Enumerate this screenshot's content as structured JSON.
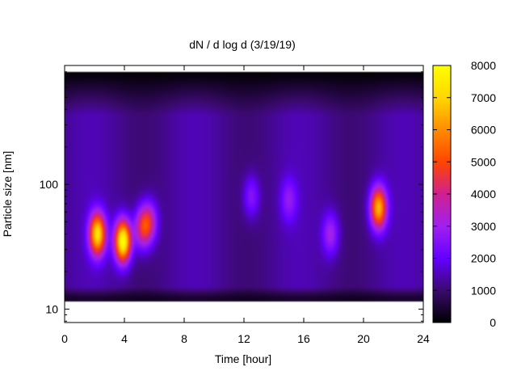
{
  "chart_data": {
    "type": "heatmap",
    "title": "dN / d log d (3/19/19)",
    "xlabel": "Time [hour]",
    "ylabel": "Particle size [nm]",
    "x_range": [
      0,
      24
    ],
    "x_ticks": [
      0,
      4,
      8,
      12,
      16,
      20,
      24
    ],
    "x_tick_labels": [
      "0",
      "4",
      "8",
      "12",
      "16",
      "20",
      "24"
    ],
    "y_scale": "log",
    "y_range": [
      7.8,
      900
    ],
    "data_y_range": [
      11.5,
      800
    ],
    "y_ticks": [
      10,
      100
    ],
    "y_tick_labels": [
      "10",
      "100"
    ],
    "colorbar": {
      "range": [
        0,
        8000
      ],
      "ticks": [
        0,
        1000,
        2000,
        3000,
        4000,
        5000,
        6000,
        7000,
        8000
      ],
      "tick_labels": [
        "0",
        "1000",
        "2000",
        "3000",
        "4000",
        "5000",
        "6000",
        "7000",
        "8000"
      ],
      "palette": [
        "#000000",
        "#3b0a6e",
        "#6400ff",
        "#a020f0",
        "#d02090",
        "#ff4500",
        "#ff8c00",
        "#ffd700",
        "#ffff00"
      ]
    },
    "background_level": 1500,
    "peaks": [
      {
        "time": 2.2,
        "size": 40,
        "value": 6800
      },
      {
        "time": 3.9,
        "size": 35,
        "value": 7800
      },
      {
        "time": 5.2,
        "size": 45,
        "value": 3800
      },
      {
        "time": 5.7,
        "size": 50,
        "value": 3300
      },
      {
        "time": 17.8,
        "size": 40,
        "value": 2800
      },
      {
        "time": 21.0,
        "size": 65,
        "value": 6200
      },
      {
        "time": 12.5,
        "size": 80,
        "value": 2400
      },
      {
        "time": 15.0,
        "size": 75,
        "value": 2300
      }
    ],
    "grid": false,
    "legend": "colorbar-right"
  }
}
